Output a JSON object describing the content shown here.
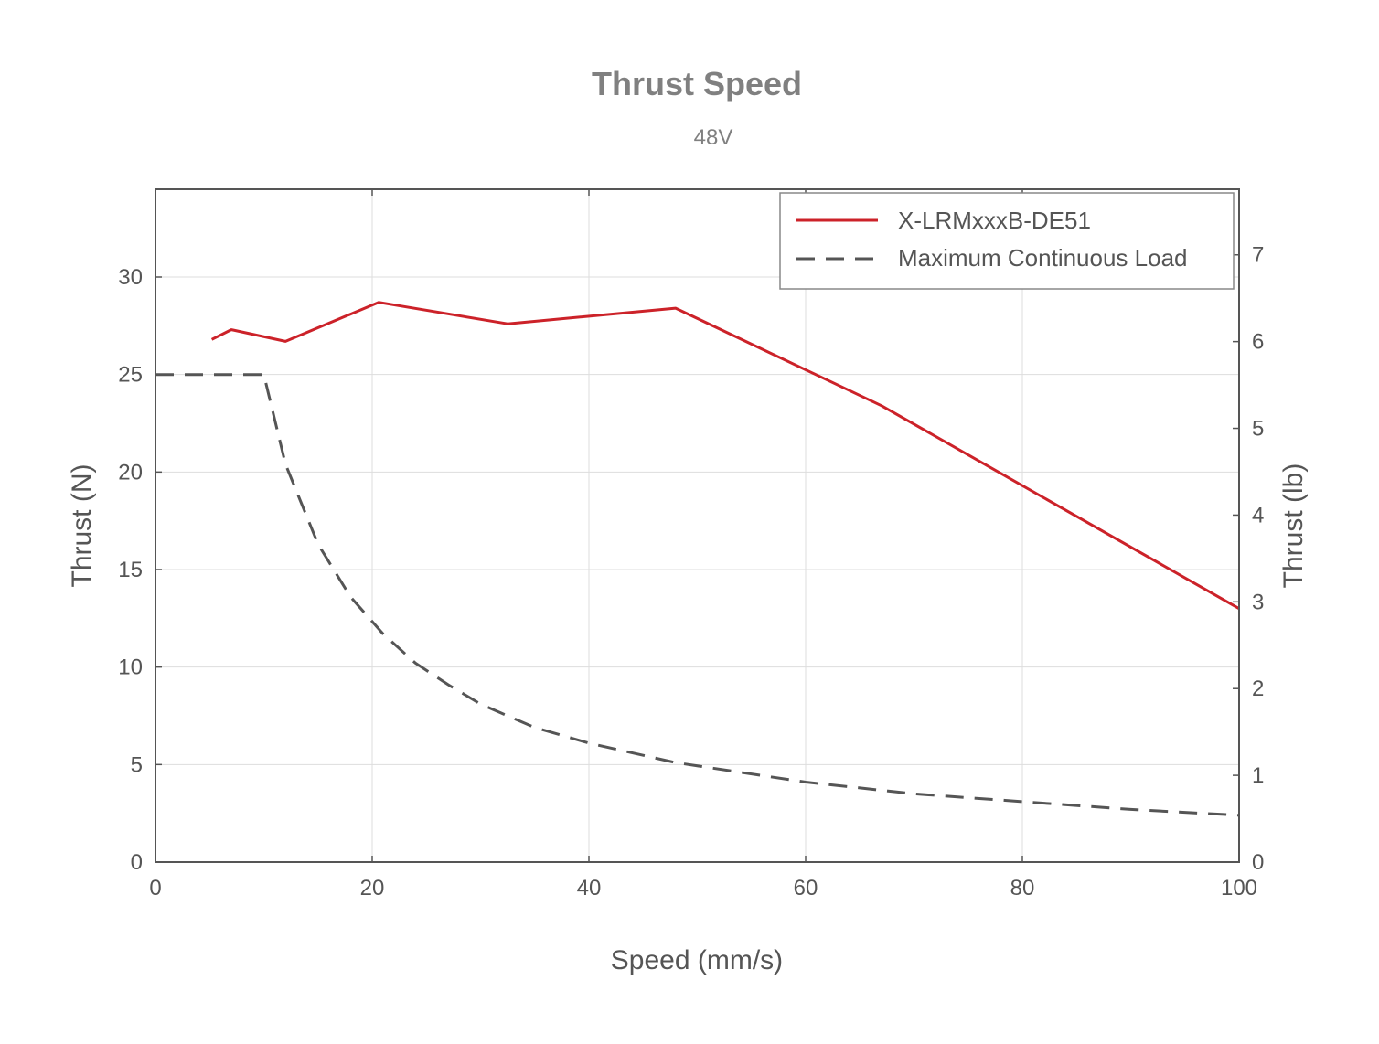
{
  "chart_data": {
    "type": "line",
    "title": "Thrust Speed",
    "subtitle": "48V",
    "xlabel": "Speed (mm/s)",
    "ylabel": "Thrust (N)",
    "y2label": "Thrust (lb)",
    "xlim": [
      0,
      100
    ],
    "ylim": [
      0,
      34.5
    ],
    "y2lim": [
      0,
      7.756
    ],
    "xticks": [
      "0",
      "20",
      "40",
      "60",
      "80",
      "100"
    ],
    "yticks": [
      "0",
      "5",
      "10",
      "15",
      "20",
      "25",
      "30"
    ],
    "y2ticks": [
      "0",
      "1",
      "2",
      "3",
      "4",
      "5",
      "6",
      "7"
    ],
    "grid": true,
    "legend_position": "top-right",
    "series": [
      {
        "name": "X-LRMxxxB-DE51",
        "style": "solid",
        "color": "#cc2229",
        "x": [
          5.2,
          7,
          12,
          20.6,
          32.5,
          48,
          67,
          100
        ],
        "y": [
          26.8,
          27.3,
          26.7,
          28.7,
          27.6,
          28.4,
          23.4,
          13
        ]
      },
      {
        "name": "Maximum Continuous Load",
        "style": "dashed",
        "color": "#555555",
        "x": [
          0,
          5,
          10,
          12,
          15,
          18,
          21,
          24,
          27,
          30,
          35,
          40,
          48,
          60,
          70,
          80,
          90,
          100
        ],
        "y": [
          25,
          25,
          25,
          20.4,
          16.3,
          13.6,
          11.7,
          10.2,
          9.1,
          8.1,
          6.9,
          6.1,
          5.1,
          4.1,
          3.5,
          3.1,
          2.7,
          2.4
        ]
      }
    ]
  }
}
